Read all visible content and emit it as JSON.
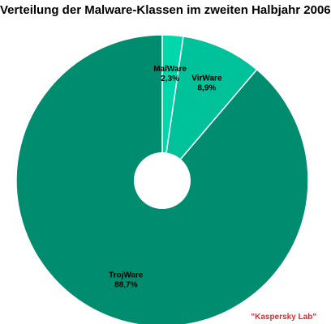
{
  "chart_data": {
    "type": "pie",
    "title": "Verteilung der Malware-Klassen im zweiten Halbjahr 2006",
    "slices": [
      {
        "name": "TrojWare",
        "value": 88.7,
        "label": "88,7%",
        "color": "#008c6e"
      },
      {
        "name": "VirWare",
        "value": 8.9,
        "label": "8,9%",
        "color": "#00c29a"
      },
      {
        "name": "MalWare",
        "value": 2.3,
        "label": "2,3%",
        "color": "#00d8ac"
      }
    ],
    "start_angle": "top",
    "direction": "counter-clockwise",
    "donut": true,
    "legend": "none"
  },
  "credit": "\"Kaspersky Lab\""
}
